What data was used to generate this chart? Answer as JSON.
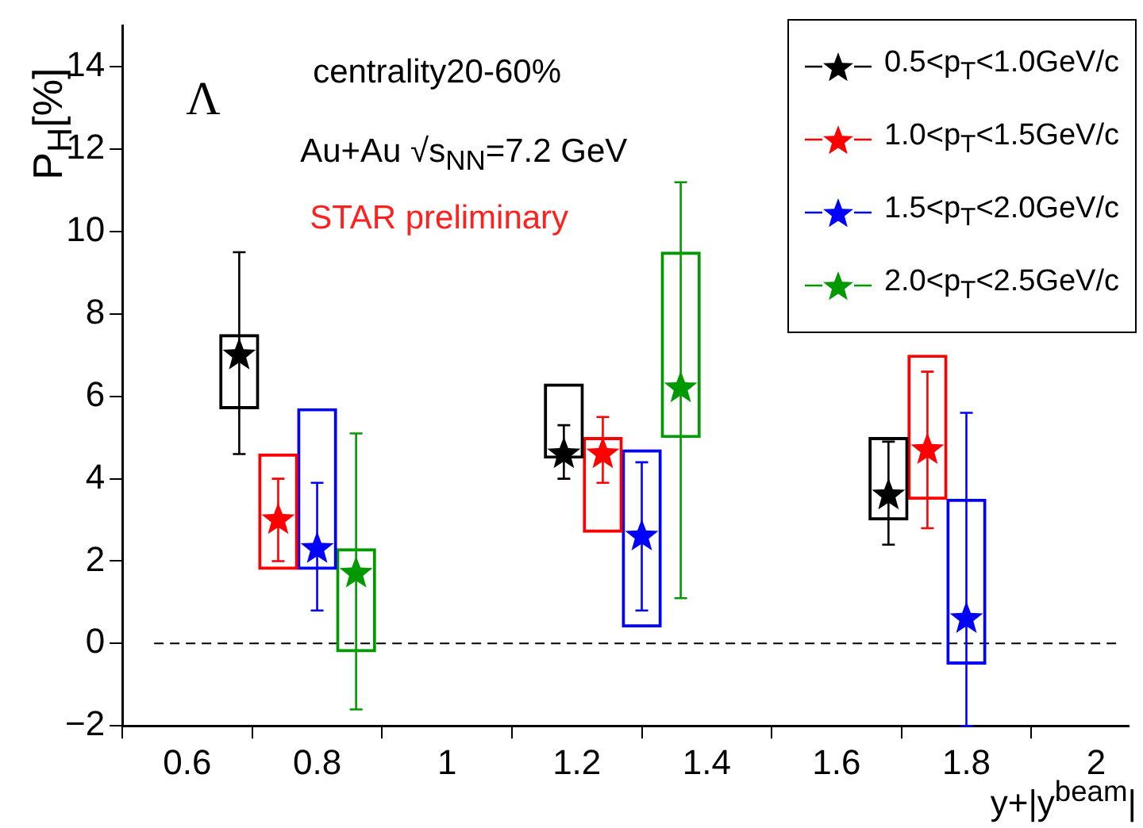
{
  "chart_data": {
    "type": "scatter",
    "ylabel": "P$_{H}$[%]",
    "xlabel": "y+|y$^{beam}$|",
    "annotations": [
      "Λ",
      "centrality20-60%",
      "Au+Au √s$_{NN}$=7.2 GeV",
      "STAR preliminary"
    ],
    "xlim": [
      0.5,
      2.05
    ],
    "xticks": [
      0.6,
      0.8,
      1,
      1.2,
      1.4,
      1.6,
      1.8,
      2
    ],
    "ylim": [
      -2,
      15
    ],
    "yticks": [
      {
        "value": -2,
        "label": "−2"
      },
      0,
      2,
      4,
      6,
      8,
      10,
      12,
      14
    ],
    "marker": "star",
    "legend": "top right",
    "grid": false,
    "ref_lines": [
      {
        "axis": "y",
        "value": 0,
        "line_style": "dashed",
        "color": "#000000"
      }
    ],
    "series": [
      {
        "type": "bar",
        "color": "#000000",
        "x": [
          0.68,
          1.18,
          1.68
        ],
        "base": [
          5.7,
          4.5,
          3.0
        ],
        "values": [
          1.8,
          1.8,
          2.0
        ]
      },
      {
        "type": "bar",
        "color": "#ff0000",
        "x": [
          0.74,
          1.24,
          1.74
        ],
        "base": [
          1.8,
          2.7,
          3.5
        ],
        "values": [
          2.8,
          2.3,
          3.5
        ]
      },
      {
        "type": "bar",
        "color": "#0000ff",
        "x": [
          0.8,
          1.3,
          1.8
        ],
        "base": [
          1.8,
          0.4,
          -0.5
        ],
        "values": [
          3.9,
          4.3,
          4.0
        ]
      },
      {
        "type": "bar",
        "color": "#009900",
        "x": [
          0.86,
          1.36
        ],
        "base": [
          -0.2,
          5.0
        ],
        "values": [
          2.5,
          4.5
        ]
      },
      {
        "name": "0.5<p$_{T}$<1.0GeV/c",
        "color": "#000000",
        "x": [
          0.68,
          1.18,
          1.68
        ],
        "values": [
          7.0,
          4.6,
          3.6
        ],
        "errors": [
          [
            4.6,
            9.5
          ],
          [
            4.0,
            5.3
          ],
          [
            2.4,
            4.9
          ]
        ]
      },
      {
        "name": "1.0<p$_{T}$<1.5GeV/c",
        "color": "#ff0000",
        "x": [
          0.74,
          1.24,
          1.74
        ],
        "values": [
          3.0,
          4.6,
          4.7
        ],
        "errors": [
          [
            2.0,
            4.0
          ],
          [
            3.9,
            5.5
          ],
          [
            2.8,
            6.6
          ]
        ]
      },
      {
        "name": "1.5<p$_{T}$<2.0GeV/c",
        "color": "#0000ff",
        "x": [
          0.8,
          1.3,
          1.8
        ],
        "values": [
          2.3,
          2.6,
          0.6
        ],
        "errors": [
          [
            0.8,
            3.9
          ],
          [
            0.8,
            4.4
          ],
          [
            -2,
            5.6
          ]
        ]
      },
      {
        "name": "2.0<p$_{T}$<2.5GeV/c",
        "color": "#009900",
        "x": [
          0.86,
          1.36
        ],
        "values": [
          1.7,
          6.2
        ],
        "errors": [
          [
            -1.6,
            5.1
          ],
          [
            1.1,
            11.2
          ]
        ]
      }
    ]
  }
}
